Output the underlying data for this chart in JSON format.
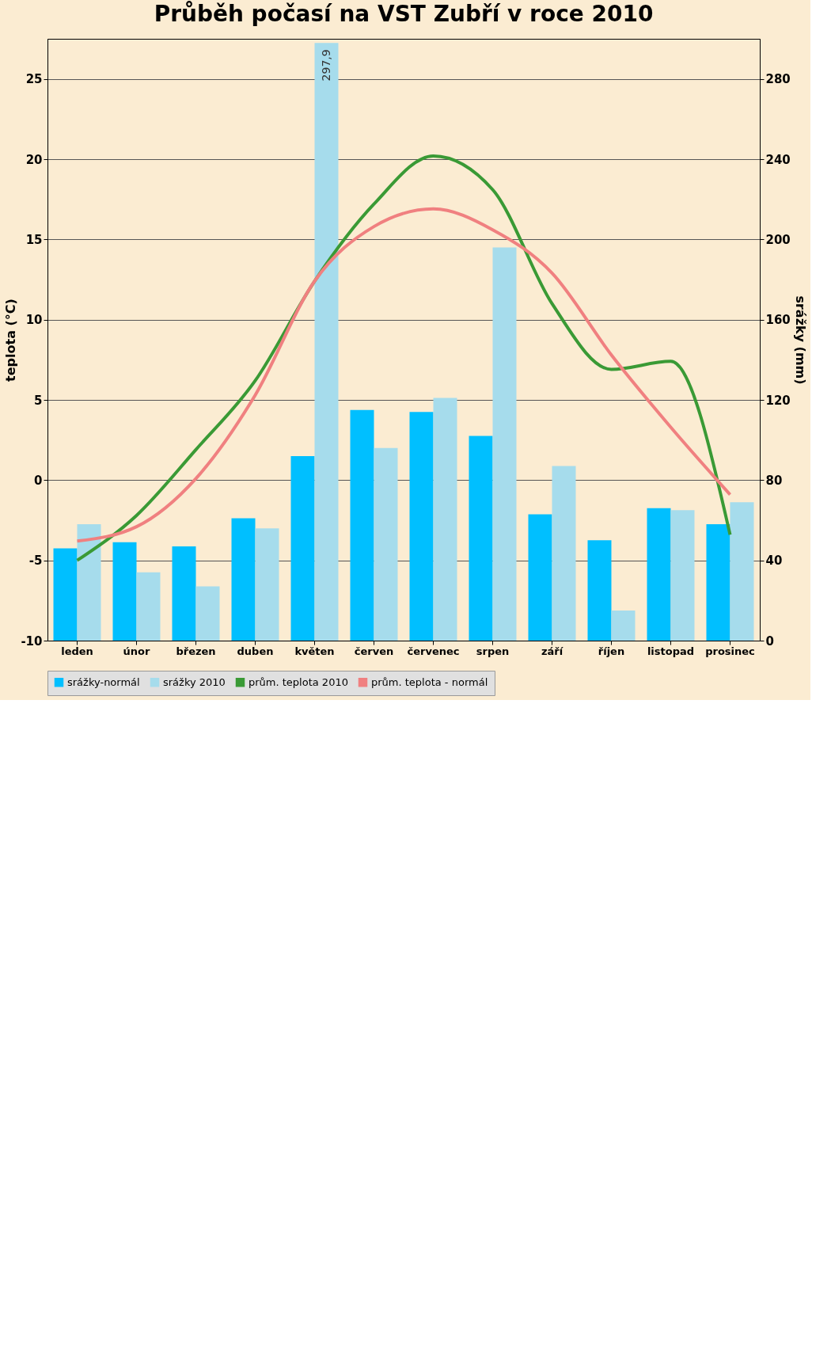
{
  "chart_data": {
    "type": "bar",
    "title": "Průběh počasí na VST Zubří v roce 2010",
    "ylabel": "teplota (°C)",
    "y2label": "srážky (mm)",
    "categories": [
      "leden",
      "únor",
      "březen",
      "duben",
      "květen",
      "červen",
      "červenec",
      "srpen",
      "září",
      "říjen",
      "listopad",
      "prosinec"
    ],
    "series": [
      {
        "name": "srážky-normál",
        "axis": "y2",
        "color": "#00bfff",
        "values": [
          46,
          49,
          47,
          61,
          92,
          115,
          114,
          102,
          63,
          50,
          66,
          58
        ]
      },
      {
        "name": "srážky 2010",
        "axis": "y2",
        "color": "#a6dcec",
        "values": [
          58,
          34,
          27,
          56,
          297.9,
          96,
          121,
          196,
          87,
          15,
          65,
          69
        ],
        "value_labels": [
          null,
          null,
          null,
          null,
          "297,9",
          null,
          null,
          null,
          null,
          null,
          null,
          null
        ]
      },
      {
        "name": "prům. teplota 2010",
        "type": "line",
        "color": "#3a9a35",
        "values": [
          -5.0,
          -2.2,
          1.9,
          6.2,
          12.4,
          17.2,
          20.2,
          18.1,
          11.0,
          6.9,
          7.4,
          -3.4
        ]
      },
      {
        "name": "prům. teplota - normál",
        "type": "line",
        "color": "#f08080",
        "values": [
          -3.8,
          -2.9,
          0.1,
          5.3,
          12.4,
          15.8,
          16.9,
          15.6,
          12.9,
          7.8,
          3.3,
          -0.9
        ]
      }
    ],
    "ylim": [
      -10,
      27.5
    ],
    "yticks": [
      -10,
      -5,
      0,
      5,
      10,
      15,
      20,
      25
    ],
    "y2lim": [
      0,
      300
    ],
    "y2ticks": [
      0,
      40,
      80,
      120,
      160,
      200,
      240,
      280
    ],
    "grid": "y2",
    "legend": "bottom"
  }
}
